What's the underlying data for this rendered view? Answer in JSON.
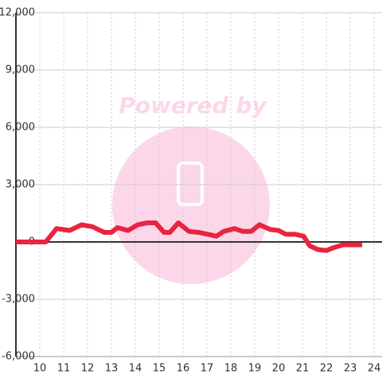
{
  "chart_data": {
    "type": "line",
    "watermark": "Powered by",
    "x": [
      9,
      10.25,
      10.7,
      11.25,
      11.75,
      12.2,
      12.7,
      13,
      13.25,
      13.7,
      14.1,
      14.5,
      14.85,
      15.2,
      15.45,
      15.8,
      16.25,
      16.65,
      17.05,
      17.4,
      17.7,
      18.15,
      18.5,
      18.85,
      19.2,
      19.65,
      20,
      20.3,
      20.7,
      21.05,
      21.3,
      21.65,
      22,
      22.3,
      22.7,
      23,
      23.5
    ],
    "values": [
      0,
      0,
      700,
      600,
      900,
      800,
      500,
      500,
      750,
      600,
      900,
      1000,
      1000,
      500,
      500,
      1000,
      550,
      500,
      400,
      300,
      550,
      700,
      550,
      550,
      900,
      650,
      600,
      400,
      400,
      300,
      -200,
      -400,
      -450,
      -300,
      -150,
      -150,
      -150
    ],
    "color": "#e8253f",
    "xlim": [
      9,
      24.33
    ],
    "xticks": [
      10,
      11,
      12,
      13,
      14,
      15,
      16,
      17,
      18,
      19,
      20,
      21,
      22,
      23,
      24
    ],
    "ylim": [
      -6000,
      12000
    ],
    "yticks": [
      {
        "value": -6000,
        "label": "-6,000"
      },
      {
        "value": -3000,
        "label": "-3,000"
      },
      0,
      {
        "value": 3000,
        "label": "3,000"
      },
      {
        "value": 6000,
        "label": "6,000"
      },
      {
        "value": 9000,
        "label": "9,000"
      },
      {
        "value": 12000,
        "label": "12,000"
      }
    ],
    "grid": true
  }
}
